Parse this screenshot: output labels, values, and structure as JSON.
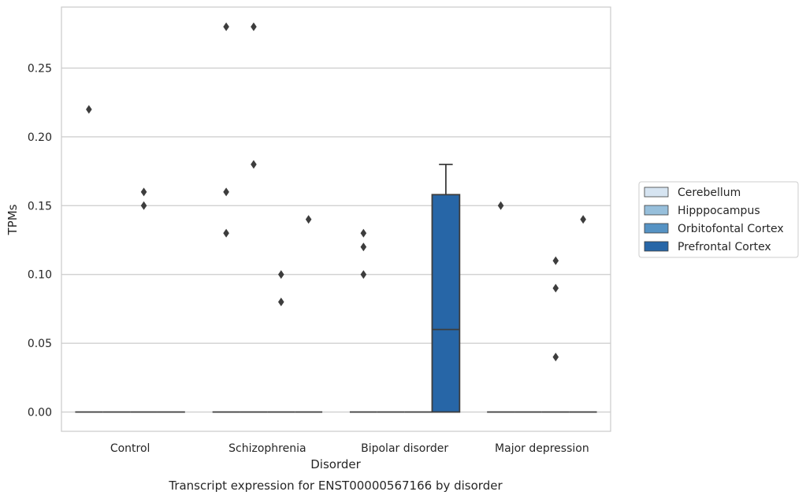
{
  "chart_data": {
    "type": "box",
    "caption": "Transcript expression for ENST00000567166 by disorder",
    "xlabel": "Disorder",
    "ylabel": "TPMs",
    "ylim": [
      -0.014,
      0.294
    ],
    "yticks": [
      "0.00",
      "0.05",
      "0.10",
      "0.15",
      "0.20",
      "0.25"
    ],
    "ytick_values": [
      0.0,
      0.05,
      0.1,
      0.15,
      0.2,
      0.25
    ],
    "grid": "horizontal",
    "legend_position": "right",
    "categories": [
      "Control",
      "Schizophrenia",
      "Bipolar disorder",
      "Major depression"
    ],
    "series": [
      {
        "name": "Cerebellum",
        "color": "#d6e4f1",
        "boxes": [
          {
            "q1": 0,
            "median": 0,
            "q3": 0,
            "whisker_low": 0,
            "whisker_high": 0,
            "outliers": [
              0.22
            ]
          },
          {
            "q1": 0,
            "median": 0,
            "q3": 0,
            "whisker_low": 0,
            "whisker_high": 0,
            "outliers": [
              0.28,
              0.16,
              0.13
            ]
          },
          {
            "q1": 0,
            "median": 0,
            "q3": 0,
            "whisker_low": 0,
            "whisker_high": 0,
            "outliers": [
              0.13,
              0.12,
              0.1
            ]
          },
          {
            "q1": 0,
            "median": 0,
            "q3": 0,
            "whisker_low": 0,
            "whisker_high": 0,
            "outliers": [
              0.15
            ]
          }
        ]
      },
      {
        "name": "Hipppocampus",
        "color": "#97bfdb",
        "boxes": [
          {
            "q1": 0,
            "median": 0,
            "q3": 0,
            "whisker_low": 0,
            "whisker_high": 0,
            "outliers": []
          },
          {
            "q1": 0,
            "median": 0,
            "q3": 0,
            "whisker_low": 0,
            "whisker_high": 0,
            "outliers": [
              0.28,
              0.18
            ]
          },
          {
            "q1": 0,
            "median": 0,
            "q3": 0,
            "whisker_low": 0,
            "whisker_high": 0,
            "outliers": []
          },
          {
            "q1": 0,
            "median": 0,
            "q3": 0,
            "whisker_low": 0,
            "whisker_high": 0,
            "outliers": []
          }
        ]
      },
      {
        "name": "Orbitofontal Cortex",
        "color": "#5693c4",
        "boxes": [
          {
            "q1": 0,
            "median": 0,
            "q3": 0,
            "whisker_low": 0,
            "whisker_high": 0,
            "outliers": [
              0.16,
              0.15
            ]
          },
          {
            "q1": 0,
            "median": 0,
            "q3": 0,
            "whisker_low": 0,
            "whisker_high": 0,
            "outliers": [
              0.1,
              0.08
            ]
          },
          {
            "q1": 0,
            "median": 0,
            "q3": 0,
            "whisker_low": 0,
            "whisker_high": 0,
            "outliers": []
          },
          {
            "q1": 0,
            "median": 0,
            "q3": 0,
            "whisker_low": 0,
            "whisker_high": 0,
            "outliers": [
              0.11,
              0.09,
              0.04
            ]
          }
        ]
      },
      {
        "name": "Prefrontal Cortex",
        "color": "#2766a7",
        "boxes": [
          {
            "q1": 0,
            "median": 0,
            "q3": 0,
            "whisker_low": 0,
            "whisker_high": 0,
            "outliers": []
          },
          {
            "q1": 0,
            "median": 0,
            "q3": 0,
            "whisker_low": 0,
            "whisker_high": 0,
            "outliers": [
              0.14
            ]
          },
          {
            "q1": 0,
            "median": 0.06,
            "q3": 0.158,
            "whisker_low": 0,
            "whisker_high": 0.18,
            "outliers": []
          },
          {
            "q1": 0,
            "median": 0,
            "q3": 0,
            "whisker_low": 0,
            "whisker_high": 0,
            "outliers": [
              0.14
            ]
          }
        ]
      }
    ]
  }
}
